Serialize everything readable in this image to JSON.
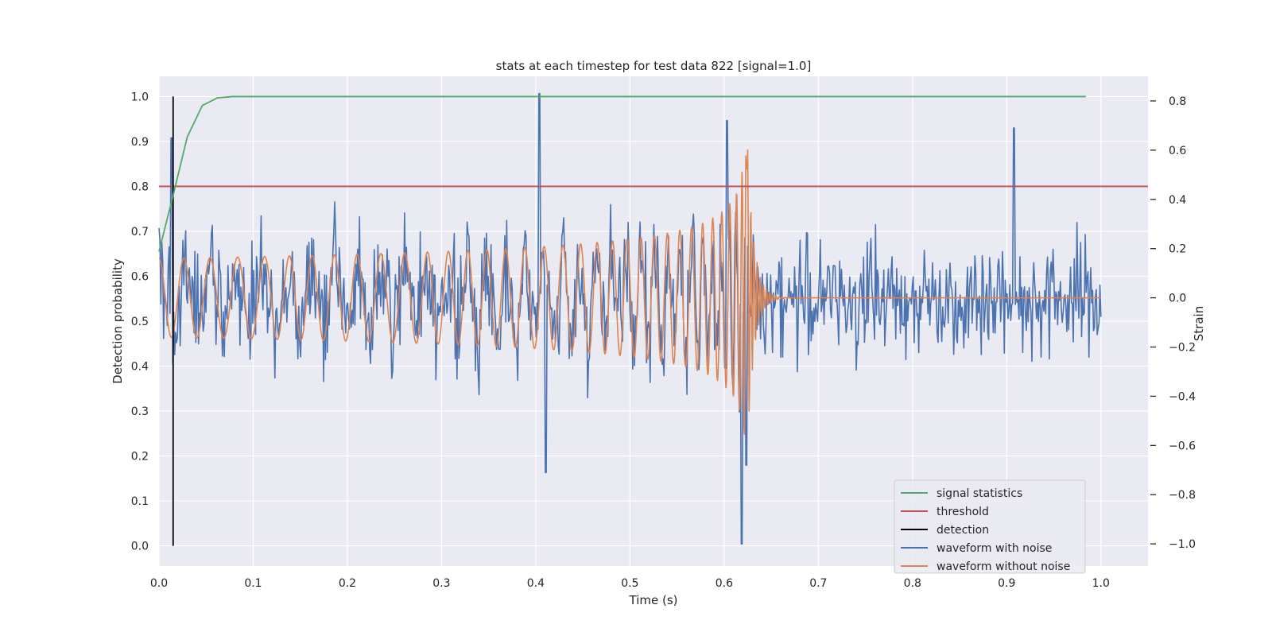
{
  "chart_data": {
    "type": "line",
    "title": "stats at each timestep for test data 822 [signal=1.0]",
    "xlabel": "Time (s)",
    "ylabel": "Detection probability",
    "y2label": "Strain",
    "xlim": [
      0.0,
      1.05
    ],
    "ylim": [
      -0.045,
      1.045
    ],
    "y2lim": [
      -1.09,
      0.9
    ],
    "xticks": [
      "0.0",
      "0.1",
      "0.2",
      "0.3",
      "0.4",
      "0.5",
      "0.6",
      "0.7",
      "0.8",
      "0.9",
      "1.0"
    ],
    "yticks": [
      "0.0",
      "0.1",
      "0.2",
      "0.3",
      "0.4",
      "0.5",
      "0.6",
      "0.7",
      "0.8",
      "0.9",
      "1.0"
    ],
    "y2ticks": [
      "−1.0",
      "−0.8",
      "−0.6",
      "−0.4",
      "−0.2",
      "0.0",
      "0.2",
      "0.4",
      "0.6",
      "0.8"
    ],
    "grid": true,
    "legend_position": "lower-right",
    "series": [
      {
        "name": "signal statistics",
        "color": "#55a868",
        "axis": "left",
        "x": [
          0.0,
          0.015,
          0.03,
          0.046,
          0.062,
          0.078,
          0.1,
          0.2,
          0.4,
          0.6,
          0.8,
          0.984
        ],
        "y": [
          0.655,
          0.78,
          0.91,
          0.98,
          0.997,
          1.0,
          1.0,
          1.0,
          1.0,
          1.0,
          1.0,
          1.0
        ]
      },
      {
        "name": "threshold",
        "color": "#c44e52",
        "axis": "left",
        "x": [
          0.0,
          1.05
        ],
        "y": [
          0.8,
          0.8
        ]
      },
      {
        "name": "detection",
        "color": "#000000",
        "axis": "left",
        "x": [
          0.015,
          0.015
        ],
        "y": [
          0.0,
          1.0
        ]
      },
      {
        "name": "waveform with noise",
        "color": "#4c72b0",
        "axis": "right",
        "x_range": [
          0.0,
          1.0
        ],
        "samples": 1024,
        "noise_amplitude": 0.16,
        "peaks": [
          {
            "x": 0.013,
            "y": 0.65
          },
          {
            "x": 0.404,
            "y": 0.83
          },
          {
            "x": 0.411,
            "y": -0.71
          },
          {
            "x": 0.603,
            "y": 0.72
          },
          {
            "x": 0.619,
            "y": -1.0
          },
          {
            "x": 0.624,
            "y": -0.68
          },
          {
            "x": 0.908,
            "y": 0.69
          }
        ]
      },
      {
        "name": "waveform without noise",
        "color": "#dd8452",
        "axis": "right",
        "x_range": [
          0.0,
          1.0
        ],
        "samples": 2000,
        "merger_time": 0.625,
        "peak_amplitude": 0.6,
        "early_amplitude": 0.16,
        "early_frequency_hz": 35,
        "late_frequency_hz": 300
      }
    ]
  }
}
